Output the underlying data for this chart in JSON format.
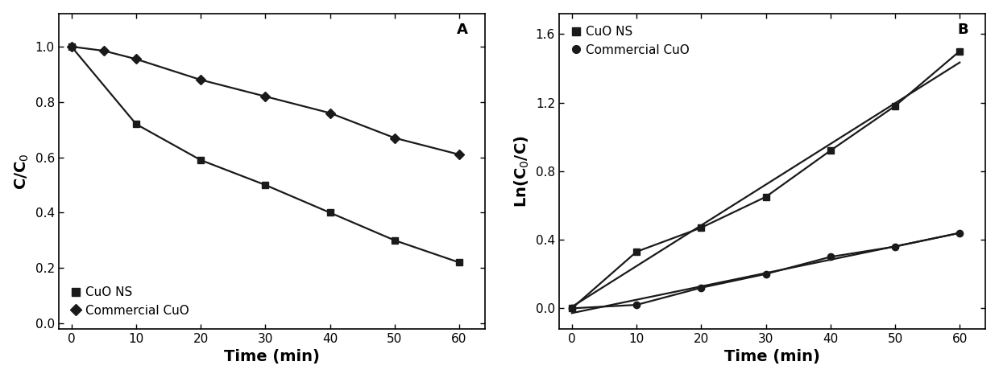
{
  "panel_A": {
    "CuO_NS": {
      "x": [
        0,
        10,
        20,
        30,
        40,
        50,
        60
      ],
      "y": [
        1.0,
        0.72,
        0.59,
        0.5,
        0.4,
        0.3,
        0.22
      ],
      "marker": "s",
      "label": "CuO NS",
      "markersize": 6
    },
    "Commercial_CuO": {
      "x": [
        0,
        5,
        10,
        20,
        30,
        40,
        50,
        60
      ],
      "y": [
        1.0,
        0.985,
        0.955,
        0.88,
        0.82,
        0.76,
        0.67,
        0.61
      ],
      "marker": "D",
      "label": "Commercial CuO",
      "markersize": 6
    },
    "xlabel": "Time (min)",
    "ylabel": "C/C$_0$",
    "xlim": [
      -2,
      64
    ],
    "ylim": [
      -0.02,
      1.12
    ],
    "yticks": [
      0.0,
      0.2,
      0.4,
      0.6,
      0.8,
      1.0
    ],
    "xticks": [
      0,
      10,
      20,
      30,
      40,
      50,
      60
    ],
    "panel_label": "A",
    "legend_loc": "lower left"
  },
  "panel_B": {
    "CuO_NS": {
      "x": [
        0,
        10,
        20,
        30,
        40,
        50,
        60
      ],
      "y": [
        0.0,
        0.33,
        0.47,
        0.65,
        0.92,
        1.18,
        1.5
      ],
      "marker": "s",
      "label": "CuO NS",
      "markersize": 6
    },
    "Commercial_CuO": {
      "x": [
        0,
        10,
        20,
        30,
        40,
        50,
        60
      ],
      "y": [
        0.0,
        0.02,
        0.12,
        0.2,
        0.3,
        0.36,
        0.44
      ],
      "marker": "o",
      "label": "Commercial CuO",
      "markersize": 6
    },
    "xlabel": "Time (min)",
    "ylabel": "Ln(C$_0$/C)",
    "xlim": [
      -2,
      64
    ],
    "ylim": [
      -0.12,
      1.72
    ],
    "yticks": [
      0.0,
      0.4,
      0.8,
      1.2,
      1.6
    ],
    "xticks": [
      0,
      10,
      20,
      30,
      40,
      50,
      60
    ],
    "panel_label": "B",
    "legend_loc": "upper left"
  },
  "color": "#1a1a1a",
  "linewidth": 1.6,
  "tick_labelsize": 11,
  "axis_labelsize": 14,
  "legend_fontsize": 11
}
